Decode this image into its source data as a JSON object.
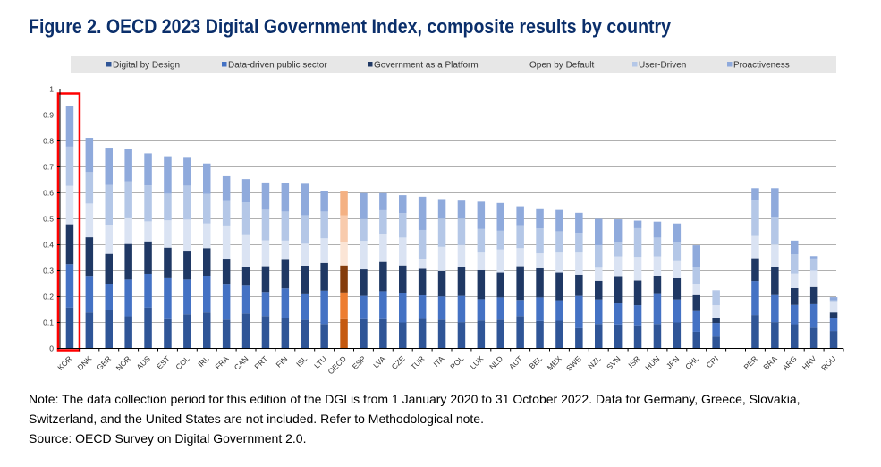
{
  "chart_data": {
    "type": "bar",
    "stacked": true,
    "title": "Figure 2. OECD 2023 Digital Government Index, composite results by country",
    "xlabel": "",
    "ylabel": "",
    "ylim": [
      0,
      1
    ],
    "yticks": [
      "0",
      "0.1",
      "0.2",
      "0.3",
      "0.4",
      "0.5",
      "0.6",
      "0.7",
      "0.8",
      "0.9",
      "1"
    ],
    "grid": true,
    "legend_position": "top",
    "highlighted_category": "KOR",
    "highlight_color": "#ff0000",
    "average_category": "OECD",
    "categories": [
      "KOR",
      "DNK",
      "GBR",
      "NOR",
      "AUS",
      "EST",
      "COL",
      "IRL",
      "FRA",
      "CAN",
      "PRT",
      "FIN",
      "ISL",
      "LTU",
      "OECD",
      "ESP",
      "LVA",
      "CZE",
      "TUR",
      "ITA",
      "POL",
      "LUX",
      "NLD",
      "AUT",
      "BEL",
      "MEX",
      "SWE",
      "NZL",
      "SVN",
      "ISR",
      "HUN",
      "JPN",
      "CHL",
      "CRI",
      "",
      "PER",
      "BRA",
      "ARG",
      "HRV",
      "ROU"
    ],
    "series": [
      {
        "name": "Digital by Design",
        "color": "#2f5597",
        "oecd_color": "#c55a11",
        "values": [
          0.158,
          0.139,
          0.149,
          0.124,
          0.158,
          0.113,
          0.132,
          0.139,
          0.111,
          0.135,
          0.125,
          0.118,
          0.11,
          0.094,
          0.113,
          0.113,
          0.113,
          0.1,
          0.114,
          0.111,
          0.101,
          0.108,
          0.111,
          0.125,
          0.106,
          0.107,
          0.078,
          0.094,
          0.092,
          0.089,
          0.094,
          0.1,
          0.064,
          0.046,
          null,
          0.129,
          0.101,
          0.093,
          0.08,
          0.067
        ]
      },
      {
        "name": "Data-driven public sector",
        "color": "#4472c4",
        "oecd_color": "#ed7d31",
        "values": [
          0.167,
          0.138,
          0.1,
          0.142,
          0.13,
          0.158,
          0.134,
          0.142,
          0.135,
          0.107,
          0.093,
          0.114,
          0.099,
          0.129,
          0.103,
          0.09,
          0.108,
          0.114,
          0.091,
          0.09,
          0.102,
          0.082,
          0.086,
          0.062,
          0.091,
          0.079,
          0.125,
          0.095,
          0.082,
          0.078,
          0.116,
          0.089,
          0.08,
          0.052,
          null,
          0.131,
          0.105,
          0.075,
          0.091,
          0.049
        ]
      },
      {
        "name": "Government as a Platform",
        "color": "#1f3864",
        "oecd_color": "#843c0c",
        "values": [
          0.154,
          0.152,
          0.116,
          0.137,
          0.125,
          0.118,
          0.108,
          0.106,
          0.097,
          0.073,
          0.099,
          0.11,
          0.11,
          0.107,
          0.104,
          0.102,
          0.113,
          0.106,
          0.102,
          0.098,
          0.11,
          0.112,
          0.096,
          0.13,
          0.112,
          0.107,
          0.082,
          0.072,
          0.102,
          0.095,
          0.068,
          0.082,
          0.062,
          0.02,
          null,
          0.088,
          0.109,
          0.065,
          0.066,
          0.023
        ]
      },
      {
        "name": "Open by Default",
        "color": "#dae3f3",
        "oecd_color": "#fbe5d6",
        "values": [
          0.148,
          0.13,
          0.111,
          0.099,
          0.077,
          0.105,
          0.123,
          0.095,
          0.128,
          0.122,
          0.1,
          0.074,
          0.085,
          0.095,
          0.089,
          0.11,
          0.107,
          0.108,
          0.039,
          0.093,
          0.086,
          0.068,
          0.089,
          0.07,
          0.058,
          0.077,
          0.085,
          0.05,
          0.079,
          0.091,
          0.077,
          0.066,
          0.043,
          0.049,
          null,
          0.086,
          0.086,
          0.056,
          0.063,
          0.04
        ]
      },
      {
        "name": "User-Driven",
        "color": "#b4c7e7",
        "oecd_color": "#f8cbad",
        "values": [
          0.151,
          0.121,
          0.155,
          0.142,
          0.139,
          0.103,
          0.131,
          0.114,
          0.098,
          0.126,
          0.118,
          0.112,
          0.11,
          0.103,
          0.104,
          0.084,
          0.092,
          0.094,
          0.111,
          0.109,
          0.102,
          0.091,
          0.072,
          0.085,
          0.096,
          0.082,
          0.076,
          0.087,
          0.055,
          0.111,
          0.073,
          0.073,
          0.064,
          0.055,
          null,
          0.136,
          0.107,
          0.074,
          0.047,
          0.007
        ]
      },
      {
        "name": "Proactiveness",
        "color": "#8faadc",
        "oecd_color": "#f4b183",
        "values": [
          0.155,
          0.132,
          0.143,
          0.125,
          0.123,
          0.144,
          0.107,
          0.117,
          0.095,
          0.09,
          0.105,
          0.109,
          0.121,
          0.079,
          0.092,
          0.1,
          0.066,
          0.069,
          0.128,
          0.075,
          0.069,
          0.105,
          0.107,
          0.076,
          0.074,
          0.082,
          0.077,
          0.102,
          0.088,
          0.029,
          0.061,
          0.072,
          0.085,
          0.002,
          null,
          0.048,
          0.11,
          0.053,
          0.009,
          0.012
        ]
      }
    ]
  },
  "notes": {
    "line1": "Note: The data collection period for this edition of the DGI is from 1 January 2020 to 31 October 2022. Data for Germany, Greece, Slovakia,",
    "line2": "Switzerland, and the United States are not included. Refer to Methodological note.",
    "source": "Source: OECD Survey on Digital Government 2.0."
  }
}
